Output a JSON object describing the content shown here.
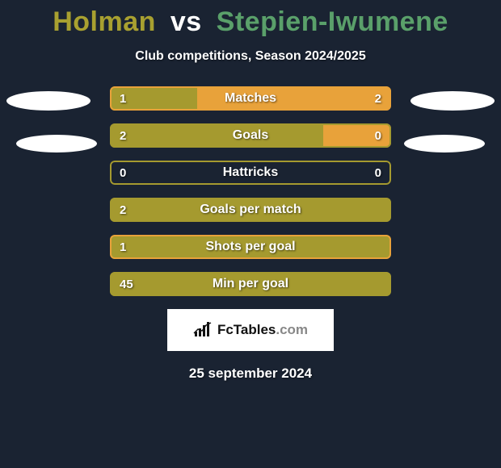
{
  "background_color": "#1a2332",
  "title": {
    "player1": "Holman",
    "vs": "vs",
    "player2": "Stepien-Iwumene",
    "player1_color": "#a8a030",
    "vs_color": "#ffffff",
    "player2_color": "#5aa06a",
    "fontsize": 34
  },
  "subtitle": "Club competitions, Season 2024/2025",
  "colors": {
    "left": "#a59a2f",
    "right": "#e8a23a",
    "border_left": "#a59a2f",
    "border_right": "#e8a23a",
    "ellipse": "#ffffff",
    "bar_bg": "#1a2332",
    "label_text": "#ffffff"
  },
  "bar_style": {
    "height": 30,
    "radius": 6,
    "gap": 16,
    "fontsize": 16,
    "value_fontsize": 15
  },
  "bars": [
    {
      "label": "Matches",
      "left_val": "1",
      "right_val": "2",
      "left_pct": 31,
      "right_pct": 69,
      "show_right": true,
      "border": "right"
    },
    {
      "label": "Goals",
      "left_val": "2",
      "right_val": "0",
      "left_pct": 76,
      "right_pct": 24,
      "show_right": true,
      "border": "left"
    },
    {
      "label": "Hattricks",
      "left_val": "0",
      "right_val": "0",
      "left_pct": 0,
      "right_pct": 0,
      "show_right": true,
      "border": "left"
    },
    {
      "label": "Goals per match",
      "left_val": "2",
      "right_val": "",
      "left_pct": 100,
      "right_pct": 0,
      "show_right": false,
      "border": "left"
    },
    {
      "label": "Shots per goal",
      "left_val": "1",
      "right_val": "",
      "left_pct": 100,
      "right_pct": 0,
      "show_right": false,
      "border": "right"
    },
    {
      "label": "Min per goal",
      "left_val": "45",
      "right_val": "",
      "left_pct": 100,
      "right_pct": 0,
      "show_right": false,
      "border": "left"
    }
  ],
  "logo": {
    "brand": "FcTables",
    "domain": ".com"
  },
  "date": "25 september 2024"
}
